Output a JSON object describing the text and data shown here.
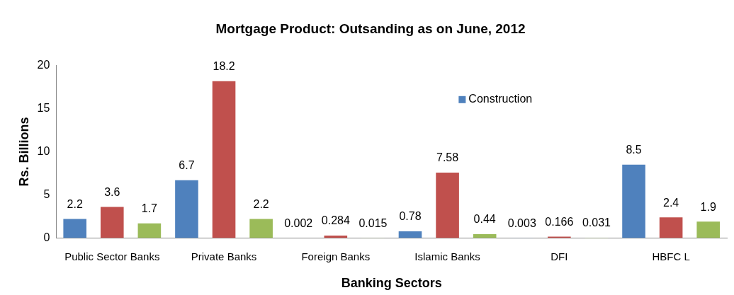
{
  "chart_data": {
    "type": "bar",
    "title": "Mortgage Product: Outsanding as on June, 2012",
    "xlabel": "Banking Sectors",
    "ylabel": "Rs. Billions",
    "categories": [
      "Public Sector Banks",
      "Private Banks",
      "Foreign Banks",
      "Islamic Banks",
      "DFI",
      "HBFC L"
    ],
    "series": [
      {
        "name": "Construction",
        "color": "#4f81bd",
        "values": [
          2.2,
          6.7,
          0.002,
          0.78,
          0.003,
          8.5
        ]
      },
      {
        "color": "#c0504d",
        "values": [
          3.6,
          18.2,
          0.284,
          7.58,
          0.166,
          2.4
        ]
      },
      {
        "color": "#9bbb59",
        "values": [
          1.7,
          2.2,
          0.015,
          0.44,
          0.031,
          1.9
        ]
      }
    ],
    "ylim": [
      0,
      20
    ],
    "yticks": [
      0,
      5,
      10,
      15,
      20
    ],
    "grid": false,
    "legend": "top right",
    "data_labels": true
  }
}
